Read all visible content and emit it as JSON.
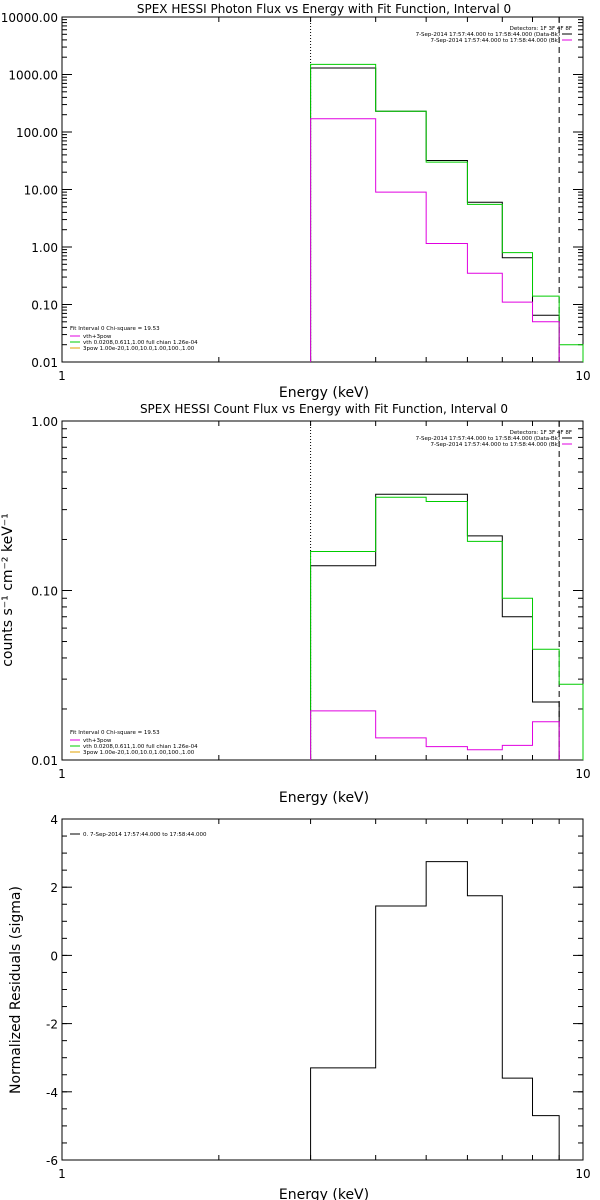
{
  "chart_data": [
    {
      "type": "line",
      "title": "SPEX HESSI Photon Flux vs Energy with Fit Function, Interval 0",
      "xlabel": "Energy (keV)",
      "ylabel": "",
      "xscale": "log",
      "yscale": "log",
      "xlim": [
        1,
        10
      ],
      "ylim": [
        0.01,
        10000
      ],
      "x_ticks": [
        "1",
        "10"
      ],
      "y_ticks": [
        "10000.00",
        "1000.00",
        "100.00",
        "10.00",
        "1.00",
        "0.10",
        "0.01"
      ],
      "bin_edges": [
        3,
        4,
        5,
        6,
        7,
        8,
        9,
        10
      ],
      "series": [
        {
          "name": "7-Sep-2014 17:57:44.000 to 17:58:44.000 (Data-Bk)",
          "color": "#000000",
          "values": [
            1300,
            230,
            32,
            6,
            0.65,
            0.065
          ]
        },
        {
          "name": "vth+3pow",
          "color": "#00cc00",
          "values": [
            1500,
            230,
            30,
            5.5,
            0.8,
            0.14,
            0.02
          ]
        },
        {
          "name": "7-Sep-2014 17:57:44.000 to 17:58:44.000 (Bk)",
          "color": "#e000e0",
          "values": [
            170,
            9,
            1.15,
            0.35,
            0.11,
            0.05
          ]
        }
      ],
      "vlines": [
        {
          "x": 3,
          "style": "dotted"
        },
        {
          "x": 9,
          "style": "dashed"
        }
      ],
      "legend_top": {
        "header": "Detectors: 1F 3F 4F 8F",
        "lines": [
          {
            "text": "7-Sep-2014 17:57:44.000 to 17:58:44.000 (Data-Bk)",
            "color": "#000000"
          },
          {
            "text": "7-Sep-2014 17:57:44.000 to 17:58:44.000 (Bk)",
            "color": "#e000e0"
          }
        ]
      },
      "legend_bottom": {
        "header": "Fit Interval 0   Chi-square = 19.53",
        "lines": [
          {
            "text": "vth+3pow",
            "color": "#e000e0"
          },
          {
            "text": "vth 0.0208,0.611,1.00  full chian 1.26e-04",
            "color": "#00cc00"
          },
          {
            "text": "3pow 1.00e-20,1.00,10.0,1.00,100.,1.00",
            "color": "#e0a000"
          }
        ]
      }
    },
    {
      "type": "line",
      "title": "SPEX HESSI Count Flux vs Energy with Fit Function, Interval 0",
      "xlabel": "Energy (keV)",
      "ylabel": "counts s⁻¹ cm⁻² keV⁻¹",
      "xscale": "log",
      "yscale": "log",
      "xlim": [
        1,
        10
      ],
      "ylim": [
        0.01,
        1
      ],
      "x_ticks": [
        "1",
        "10"
      ],
      "y_ticks": [
        "1.00",
        "0.10",
        "0.01"
      ],
      "bin_edges": [
        3,
        4,
        5,
        6,
        7,
        8,
        9,
        10
      ],
      "series": [
        {
          "name": "7-Sep-2014 17:57:44.000 to 17:58:44.000 (Data-Bk)",
          "color": "#000000",
          "values": [
            0.14,
            0.37,
            0.37,
            0.21,
            0.07,
            0.022
          ]
        },
        {
          "name": "vth+3pow",
          "color": "#00cc00",
          "values": [
            0.17,
            0.355,
            0.335,
            0.195,
            0.09,
            0.045,
            0.028
          ]
        },
        {
          "name": "7-Sep-2014 17:57:44.000 to 17:58:44.000 (Bk)",
          "color": "#e000e0",
          "values": [
            0.0195,
            0.0135,
            0.012,
            0.0115,
            0.0122,
            0.0168
          ]
        }
      ],
      "vlines": [
        {
          "x": 3,
          "style": "dotted"
        },
        {
          "x": 9,
          "style": "dashed"
        }
      ],
      "legend_top": {
        "header": "Detectors: 1F 3F 4F 8F",
        "lines": [
          {
            "text": "7-Sep-2014 17:57:44.000 to 17:58:44.000 (Data-Bk)",
            "color": "#000000"
          },
          {
            "text": "7-Sep-2014 17:57:44.000 to 17:58:44.000 (Bk)",
            "color": "#e000e0"
          }
        ]
      },
      "legend_bottom": {
        "header": "Fit Interval 0   Chi-square = 19.53",
        "lines": [
          {
            "text": "vth+3pow",
            "color": "#e000e0"
          },
          {
            "text": "vth 0.0208,0.611,1.00  full chian 1.26e-04",
            "color": "#00cc00"
          },
          {
            "text": "3pow 1.00e-20,1.00,10.0,1.00,100.,1.00",
            "color": "#e0a000"
          }
        ]
      }
    },
    {
      "type": "line",
      "title": "",
      "xlabel": "Energy (keV)",
      "ylabel": "Normalized Residuals (sigma)",
      "xscale": "log",
      "yscale": "linear",
      "xlim": [
        1,
        10
      ],
      "ylim": [
        -6,
        4
      ],
      "x_ticks": [
        "1",
        "10"
      ],
      "y_ticks": [
        "4",
        "2",
        "0",
        "-2",
        "-4",
        "-6"
      ],
      "bin_edges": [
        3,
        4,
        5,
        6,
        7,
        8,
        9
      ],
      "series": [
        {
          "name": "0. 7-Sep-2014 17:57:44.000 to 17:58:44.000",
          "color": "#000000",
          "values": [
            -3.3,
            1.45,
            2.75,
            1.75,
            -3.6,
            -4.7
          ]
        }
      ],
      "vlines": [],
      "legend_top": {
        "header": "",
        "lines": [
          {
            "text": "0. 7-Sep-2014 17:57:44.000 to 17:58:44.000",
            "color": "#000000"
          }
        ]
      },
      "legend_bottom": {
        "header": "",
        "lines": []
      }
    }
  ]
}
